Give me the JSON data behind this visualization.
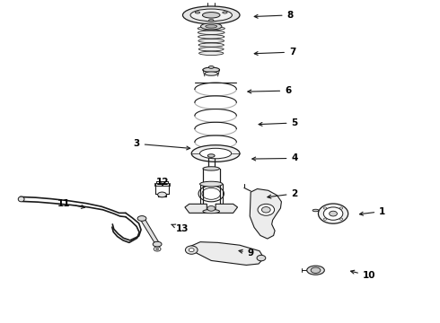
{
  "bg_color": "#ffffff",
  "line_color": "#1a1a1a",
  "label_color": "#000000",
  "fig_width": 4.9,
  "fig_height": 3.6,
  "dpi": 100,
  "label_positions": {
    "8": [
      0.66,
      0.955,
      0.57,
      0.95
    ],
    "7": [
      0.665,
      0.84,
      0.57,
      0.835
    ],
    "6": [
      0.655,
      0.72,
      0.555,
      0.717
    ],
    "5": [
      0.67,
      0.62,
      0.58,
      0.615
    ],
    "4": [
      0.67,
      0.51,
      0.565,
      0.508
    ],
    "3": [
      0.31,
      0.555,
      0.44,
      0.54
    ],
    "2": [
      0.67,
      0.4,
      0.6,
      0.388
    ],
    "1": [
      0.87,
      0.345,
      0.81,
      0.335
    ],
    "9": [
      0.57,
      0.215,
      0.535,
      0.225
    ],
    "10": [
      0.84,
      0.145,
      0.79,
      0.162
    ],
    "11": [
      0.145,
      0.37,
      0.2,
      0.355
    ],
    "12": [
      0.37,
      0.435,
      0.368,
      0.415
    ],
    "13": [
      0.415,
      0.29,
      0.388,
      0.305
    ]
  }
}
